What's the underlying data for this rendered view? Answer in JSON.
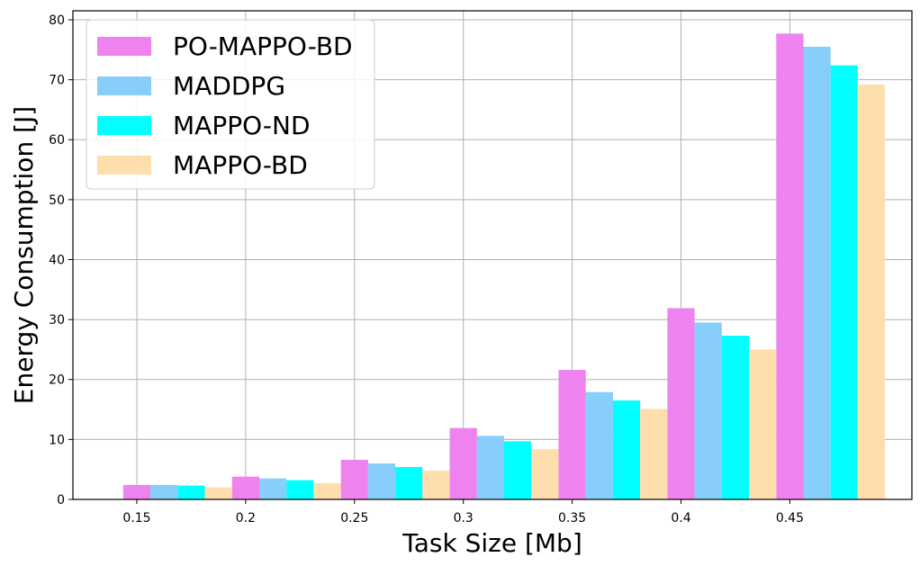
{
  "chart_data": {
    "type": "bar",
    "title": "",
    "xlabel": "Task Size [Mb]",
    "ylabel": "Energy Consumption [J]",
    "categories": [
      "0.15",
      "0.2",
      "0.25",
      "0.3",
      "0.35",
      "0.4",
      "0.45"
    ],
    "ylim": [
      0,
      81.5
    ],
    "yticks": [
      0,
      10,
      20,
      30,
      40,
      50,
      60,
      70,
      80
    ],
    "grid": true,
    "legend_position": "top-left",
    "series": [
      {
        "name": "PO-MAPPO-BD",
        "color": "#ee82ee",
        "values": [
          2.4,
          3.8,
          6.6,
          11.9,
          21.6,
          31.9,
          77.7
        ]
      },
      {
        "name": "MADDPG",
        "color": "#87cefa",
        "values": [
          2.4,
          3.5,
          6.0,
          10.6,
          17.9,
          29.5,
          75.5
        ]
      },
      {
        "name": "MAPPO-ND",
        "color": "#00ffff",
        "values": [
          2.3,
          3.2,
          5.4,
          9.7,
          16.5,
          27.3,
          72.4
        ]
      },
      {
        "name": "MAPPO-BD",
        "color": "#ffdead",
        "values": [
          2.0,
          2.7,
          4.8,
          8.4,
          15.1,
          25.0,
          69.2
        ]
      }
    ]
  }
}
